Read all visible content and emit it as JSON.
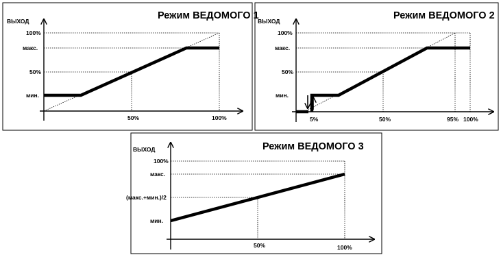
{
  "panels": [
    {
      "title": "Режим ВЕДОМОГО 1",
      "y_axis_label": "ВЫХОД",
      "y_ticks": {
        "p100": "100%",
        "max": "макс.",
        "p50": "50%",
        "min": "мин."
      },
      "x_ticks": {
        "p50": "50%",
        "p100": "100%"
      }
    },
    {
      "title": "Режим ВЕДОМОГО 2",
      "y_axis_label": "ВЫХОД",
      "y_ticks": {
        "p100": "100%",
        "max": "макс.",
        "p50": "50%",
        "min": "мин."
      },
      "x_ticks": {
        "p5": "5%",
        "p50": "50%",
        "p95": "95%",
        "p100": "100%"
      }
    },
    {
      "title": "Режим ВЕДОМОГО 3",
      "y_axis_label": "ВЫХОД",
      "y_ticks": {
        "p100": "100%",
        "max": "макс.",
        "mid": "(макс.+мин.)/2",
        "min": "мин."
      },
      "x_ticks": {
        "p50": "50%",
        "p100": "100%"
      }
    }
  ]
}
